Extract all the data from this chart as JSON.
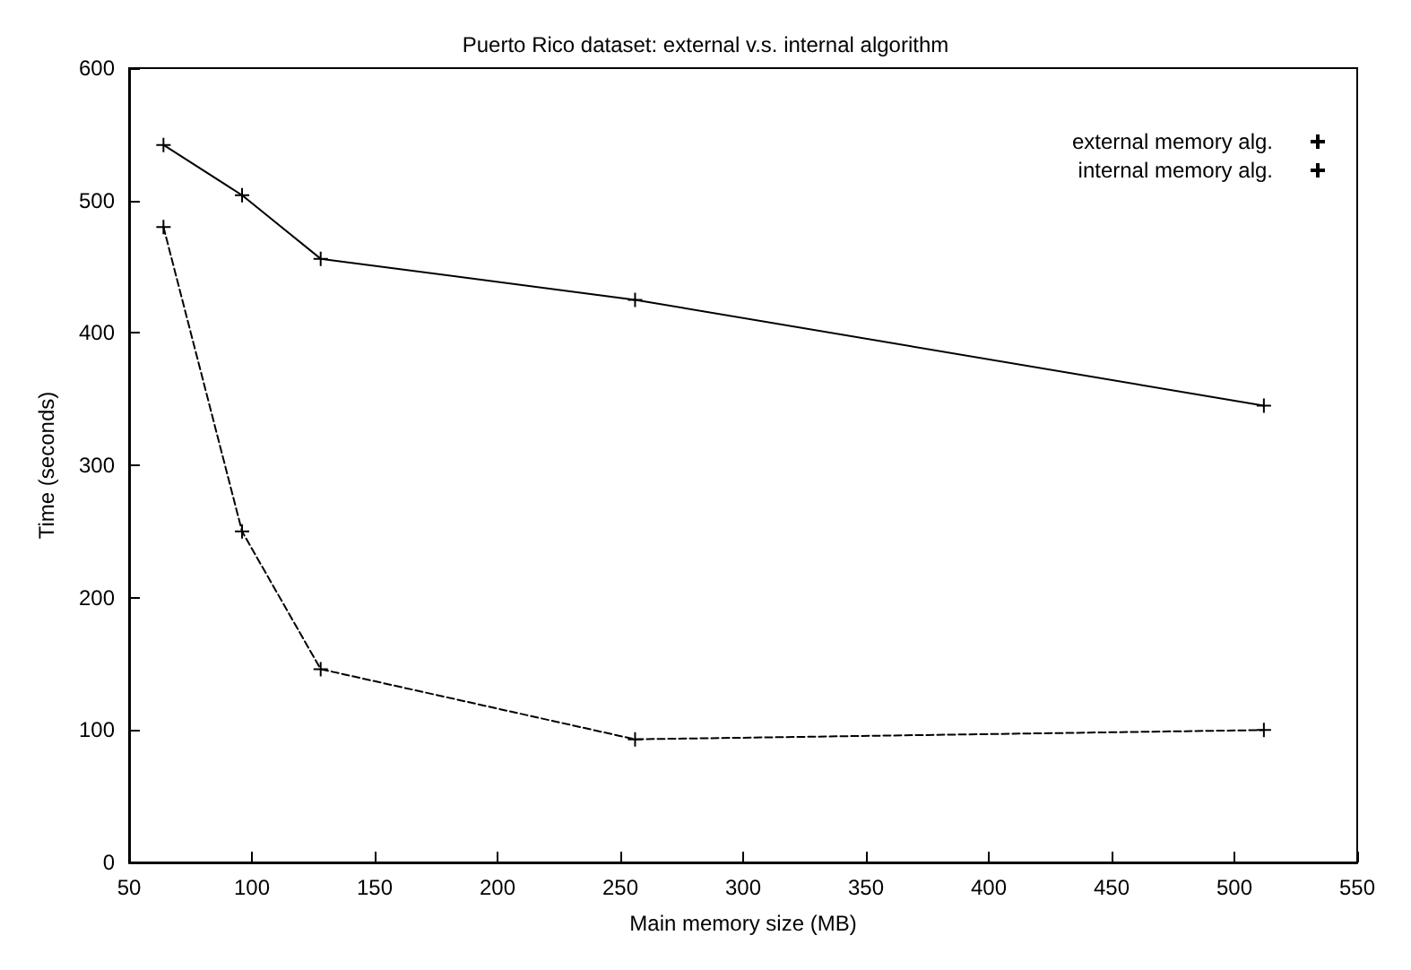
{
  "chart_data": {
    "type": "line",
    "title": "Puerto Rico dataset: external v.s. internal algorithm",
    "xlabel": "Main memory size (MB)",
    "ylabel": "Time (seconds)",
    "x": [
      64,
      96,
      128,
      256,
      512
    ],
    "series": [
      {
        "name": "external memory alg.",
        "color": "#000000",
        "values": [
          542,
          504,
          456,
          425,
          345
        ],
        "marker": "cross",
        "line_style": "solid"
      },
      {
        "name": "internal memory alg.",
        "color": "#000000",
        "values": [
          480,
          250,
          146,
          93,
          100
        ],
        "marker": "cross",
        "line_style": "dashed"
      }
    ],
    "xlim": [
      50,
      550
    ],
    "xticks": [
      50,
      100,
      150,
      200,
      250,
      300,
      350,
      400,
      450,
      500,
      550
    ],
    "ylim": [
      0,
      600
    ],
    "yticks": [
      0,
      100,
      200,
      300,
      400,
      500,
      600
    ],
    "grid": false,
    "legend": "top right"
  }
}
